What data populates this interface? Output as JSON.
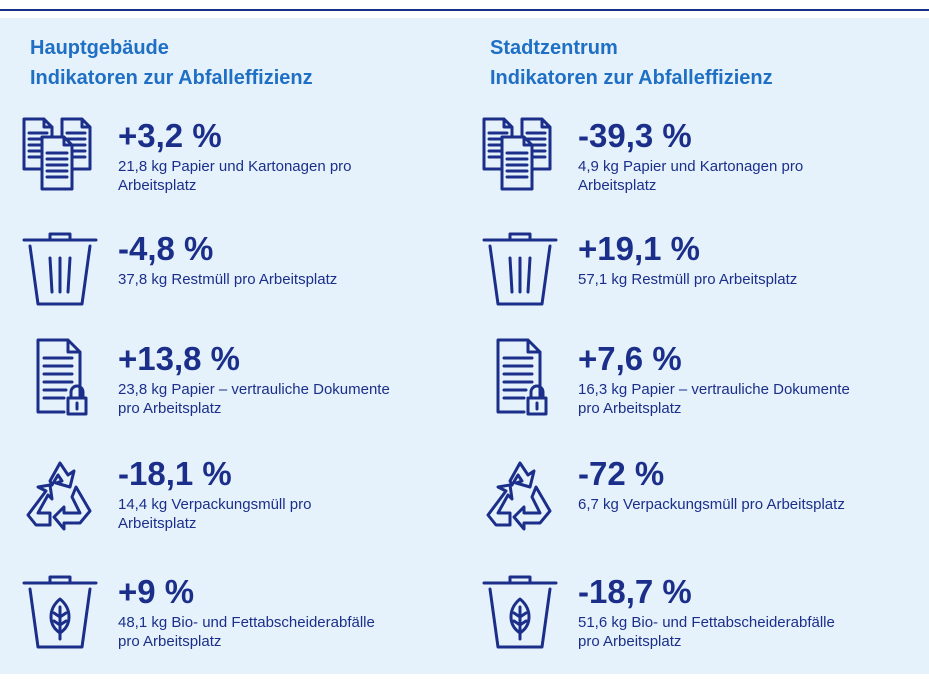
{
  "columns": [
    {
      "title_lines": [
        "Hauptgebäude",
        "Indikatoren zur Abfalleffizienz"
      ],
      "items": [
        {
          "value": "+3,2 %",
          "description": [
            "21,8 kg Papier und Kartonagen pro",
            "Arbeitsplatz"
          ]
        },
        {
          "value": "-4,8 %",
          "description": [
            "37,8 kg Restmüll pro Arbeitsplatz"
          ]
        },
        {
          "value": "+13,8 %",
          "description": [
            "23,8 kg Papier – vertrauliche Dokumente",
            "pro Arbeitsplatz"
          ]
        },
        {
          "value": "-18,1 %",
          "description": [
            "14,4 kg Verpackungsmüll pro",
            "Arbeitsplatz"
          ]
        },
        {
          "value": "+9 %",
          "description": [
            "48,1 kg Bio- und Fettabscheiderabfälle",
            "pro Arbeitsplatz"
          ]
        }
      ]
    },
    {
      "title_lines": [
        "Stadtzentrum",
        "Indikatoren zur Abfalleffizienz"
      ],
      "items": [
        {
          "value": "-39,3 %",
          "description": [
            "4,9 kg Papier und Kartonagen pro",
            "Arbeitsplatz"
          ]
        },
        {
          "value": "+19,1 %",
          "description": [
            "57,1 kg Restmüll pro Arbeitsplatz"
          ]
        },
        {
          "value": "+7,6 %",
          "description": [
            "16,3 kg Papier – vertrauliche Dokumente",
            "pro Arbeitsplatz"
          ]
        },
        {
          "value": "-72 %",
          "description": [
            "6,7 kg Verpackungsmüll pro Arbeitsplatz"
          ]
        },
        {
          "value": "-18,7 %",
          "description": [
            "51,6 kg Bio- und Fettabscheiderabfälle",
            "pro Arbeitsplatz"
          ]
        }
      ]
    }
  ]
}
